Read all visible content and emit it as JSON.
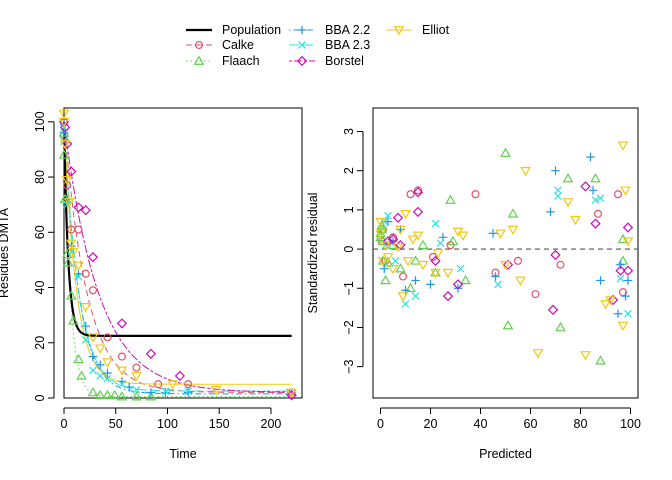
{
  "legend": {
    "entries": [
      {
        "label": "Population",
        "color": "#000000",
        "lty": "solid",
        "marker": "none"
      },
      {
        "label": "Calke",
        "color": "#DF536B",
        "lty": "dashed",
        "marker": "circle"
      },
      {
        "label": "Flaach",
        "color": "#61D04F",
        "lty": "dotted",
        "marker": "triangle"
      },
      {
        "label": "BBA 2.2",
        "color": "#2297E6",
        "lty": "dotdash",
        "marker": "plus"
      },
      {
        "label": "BBA 2.3",
        "color": "#28E2E5",
        "lty": "longdash",
        "marker": "cross"
      },
      {
        "label": "Borstel",
        "color": "#CD0BBC",
        "lty": "twodash",
        "marker": "diamond"
      },
      {
        "label": "Elliot",
        "color": "#F5C710",
        "lty": "solid",
        "marker": "triangle-down"
      }
    ]
  },
  "chart_data": [
    {
      "type": "scatter",
      "panel": "left",
      "xlabel": "Time",
      "ylabel": "Residues DMTA",
      "xlim": [
        0,
        230
      ],
      "ylim": [
        0,
        105
      ],
      "xticks": [
        0,
        50,
        100,
        150,
        200
      ],
      "yticks": [
        0,
        20,
        40,
        60,
        80,
        100
      ],
      "population_curve": {
        "color": "#000000",
        "model": "fast decline to plateau",
        "plateau": 22.5,
        "y0": 100,
        "k": 0.25
      },
      "series": [
        {
          "name": "Calke",
          "color": "#DF536B",
          "k": 0.045,
          "plateau": 2,
          "points": [
            [
              0,
              100
            ],
            [
              0,
              95
            ],
            [
              3,
              77
            ],
            [
              7,
              61
            ],
            [
              14,
              61
            ],
            [
              21,
              45
            ],
            [
              28,
              39
            ],
            [
              42,
              22
            ],
            [
              56,
              15
            ],
            [
              70,
              11
            ],
            [
              91,
              5
            ],
            [
              120,
              5
            ],
            [
              220,
              2
            ]
          ]
        },
        {
          "name": "Flaach",
          "color": "#61D04F",
          "k": 0.16,
          "plateau": 0.5,
          "points": [
            [
              0,
              96
            ],
            [
              0,
              88
            ],
            [
              1,
              72
            ],
            [
              3,
              52
            ],
            [
              4,
              49
            ],
            [
              7,
              37
            ],
            [
              9,
              28
            ],
            [
              14,
              14
            ],
            [
              17,
              8
            ],
            [
              28,
              2
            ],
            [
              35,
              1
            ],
            [
              42,
              1
            ],
            [
              49,
              1
            ],
            [
              56,
              0.5
            ],
            [
              70,
              0.5
            ],
            [
              84,
              0.5
            ]
          ]
        },
        {
          "name": "BBA 2.2",
          "color": "#2297E6",
          "k": 0.07,
          "plateau": 1.5,
          "points": [
            [
              0,
              99
            ],
            [
              0,
              96
            ],
            [
              3,
              72
            ],
            [
              7,
              55
            ],
            [
              14,
              45
            ],
            [
              21,
              26
            ],
            [
              28,
              15
            ],
            [
              35,
              12
            ],
            [
              42,
              9
            ],
            [
              56,
              6
            ],
            [
              63,
              4
            ],
            [
              84,
              2
            ],
            [
              98,
              2
            ],
            [
              120,
              2
            ],
            [
              218,
              1.5
            ]
          ]
        },
        {
          "name": "BBA 2.3",
          "color": "#28E2E5",
          "k": 0.07,
          "plateau": 2.5,
          "points": [
            [
              0,
              98
            ],
            [
              0,
              93
            ],
            [
              3,
              70
            ],
            [
              7,
              53
            ],
            [
              14,
              44
            ],
            [
              21,
              21
            ],
            [
              28,
              10
            ],
            [
              35,
              8
            ],
            [
              42,
              7
            ],
            [
              56,
              5
            ],
            [
              70,
              3
            ],
            [
              98,
              2.5
            ],
            [
              120,
              2.5
            ],
            [
              218,
              2
            ]
          ]
        },
        {
          "name": "Borstel",
          "color": "#CD0BBC",
          "k": 0.03,
          "plateau": 2,
          "points": [
            [
              0,
              100
            ],
            [
              1,
              98
            ],
            [
              3,
              92
            ],
            [
              7,
              82
            ],
            [
              14,
              69
            ],
            [
              21,
              68
            ],
            [
              28,
              51
            ],
            [
              56,
              27
            ],
            [
              84,
              16
            ],
            [
              112,
              8
            ],
            [
              220,
              1
            ]
          ]
        },
        {
          "name": "Elliot",
          "color": "#F5C710",
          "k": 0.085,
          "plateau": 5,
          "points": [
            [
              0,
              103
            ],
            [
              0,
              100
            ],
            [
              1,
              92
            ],
            [
              3,
              79
            ],
            [
              5,
              71
            ],
            [
              7,
              56
            ],
            [
              9,
              53
            ],
            [
              14,
              48
            ],
            [
              21,
              33
            ],
            [
              28,
              22
            ],
            [
              35,
              18
            ],
            [
              42,
              13
            ],
            [
              56,
              10
            ],
            [
              70,
              8
            ],
            [
              105,
              5
            ],
            [
              147,
              3
            ],
            [
              220,
              2
            ]
          ]
        }
      ]
    },
    {
      "type": "scatter",
      "panel": "right",
      "xlabel": "Predicted",
      "ylabel": "Standardized residual",
      "xlim": [
        -3,
        103
      ],
      "ylim": [
        -3.8,
        3.6
      ],
      "xticks": [
        0,
        20,
        40,
        60,
        80,
        100
      ],
      "yticks": [
        -3,
        -2,
        -1,
        0,
        1,
        2,
        3
      ],
      "hline": 0,
      "series": [
        {
          "name": "Calke",
          "color": "#DF536B",
          "points": [
            [
              0.5,
              0.2
            ],
            [
              1,
              0.5
            ],
            [
              2,
              -0.3
            ],
            [
              5,
              0.3
            ],
            [
              9,
              -0.7
            ],
            [
              12,
              1.4
            ],
            [
              15,
              1.5
            ],
            [
              21,
              -0.2
            ],
            [
              28,
              0.1
            ],
            [
              38,
              1.4
            ],
            [
              46,
              -0.6
            ],
            [
              55,
              -0.3
            ],
            [
              62,
              -1.15
            ],
            [
              72,
              -0.4
            ],
            [
              87,
              0.9
            ],
            [
              95,
              1.4
            ],
            [
              97,
              -1.1
            ]
          ]
        },
        {
          "name": "Flaach",
          "color": "#61D04F",
          "points": [
            [
              0,
              0.3
            ],
            [
              0,
              0.4
            ],
            [
              0.5,
              0.5
            ],
            [
              0.5,
              0.6
            ],
            [
              1,
              0.2
            ],
            [
              1,
              -0.3
            ],
            [
              2,
              -0.8
            ],
            [
              3,
              -0.35
            ],
            [
              5,
              0.1
            ],
            [
              8,
              -0.5
            ],
            [
              12,
              -1
            ],
            [
              14,
              -0.3
            ],
            [
              17,
              0.1
            ],
            [
              22,
              -0.6
            ],
            [
              28,
              1.25
            ],
            [
              29,
              0.2
            ],
            [
              34,
              -0.8
            ],
            [
              50,
              2.45
            ],
            [
              51,
              -1.95
            ],
            [
              53,
              0.9
            ],
            [
              72,
              -2
            ],
            [
              75,
              1.8
            ],
            [
              86,
              1.8
            ],
            [
              88,
              -2.85
            ],
            [
              97,
              -0.3
            ],
            [
              97,
              0.25
            ]
          ]
        },
        {
          "name": "BBA 2.2",
          "color": "#2297E6",
          "points": [
            [
              1.5,
              -0.5
            ],
            [
              3,
              0.7
            ],
            [
              5,
              0.2
            ],
            [
              8,
              0.5
            ],
            [
              10,
              -1.05
            ],
            [
              14,
              -0.8
            ],
            [
              20,
              -0.9
            ],
            [
              25,
              0.3
            ],
            [
              31,
              -1
            ],
            [
              45,
              0.4
            ],
            [
              46,
              -0.7
            ],
            [
              68,
              0.95
            ],
            [
              70,
              2
            ],
            [
              84,
              2.35
            ],
            [
              85,
              1.5
            ],
            [
              88,
              -0.8
            ],
            [
              96,
              -0.4
            ],
            [
              98,
              -1.2
            ],
            [
              99,
              -0.8
            ],
            [
              95,
              -1.65
            ]
          ]
        },
        {
          "name": "BBA 2.3",
          "color": "#28E2E5",
          "points": [
            [
              1.5,
              0.7
            ],
            [
              2,
              0.1
            ],
            [
              3,
              0.85
            ],
            [
              6,
              -0.3
            ],
            [
              10,
              -1.4
            ],
            [
              14,
              -1.2
            ],
            [
              22,
              0.65
            ],
            [
              24,
              0.15
            ],
            [
              32,
              -0.5
            ],
            [
              47,
              -0.9
            ],
            [
              71,
              1.5
            ],
            [
              71,
              1.35
            ],
            [
              86,
              1.25
            ],
            [
              88,
              1.3
            ],
            [
              96,
              -0.75
            ],
            [
              99,
              -1.65
            ]
          ]
        },
        {
          "name": "Borstel",
          "color": "#CD0BBC",
          "points": [
            [
              3,
              0.2
            ],
            [
              5,
              0.25
            ],
            [
              7,
              0.8
            ],
            [
              8,
              0.1
            ],
            [
              15,
              1.45
            ],
            [
              15,
              0.95
            ],
            [
              22,
              -0.3
            ],
            [
              27,
              -1.2
            ],
            [
              31,
              -0.9
            ],
            [
              51,
              -0.4
            ],
            [
              69,
              -1.55
            ],
            [
              70,
              -0.15
            ],
            [
              82,
              1.6
            ],
            [
              86,
              0.65
            ],
            [
              93,
              -1.3
            ],
            [
              96,
              -0.55
            ],
            [
              99,
              0.55
            ],
            [
              99,
              -0.55
            ]
          ]
        },
        {
          "name": "Elliot",
          "color": "#F5C710",
          "points": [
            [
              0,
              0.7
            ],
            [
              0,
              0.4
            ],
            [
              1,
              -0.3
            ],
            [
              2,
              0.1
            ],
            [
              3,
              -0.2
            ],
            [
              5,
              -0.5
            ],
            [
              7,
              0.05
            ],
            [
              8,
              0.5
            ],
            [
              9,
              -1.2
            ],
            [
              10,
              0.9
            ],
            [
              11,
              -0.3
            ],
            [
              13,
              0.25
            ],
            [
              15,
              0.35
            ],
            [
              17,
              -0.4
            ],
            [
              22,
              -0.6
            ],
            [
              23,
              -0.1
            ],
            [
              27,
              -0.6
            ],
            [
              31,
              0.45
            ],
            [
              33,
              0.35
            ],
            [
              48,
              0.4
            ],
            [
              50,
              -0.4
            ],
            [
              53,
              0.5
            ],
            [
              56,
              -0.8
            ],
            [
              58,
              2
            ],
            [
              63,
              -2.65
            ],
            [
              75,
              1.2
            ],
            [
              78,
              0.75
            ],
            [
              82,
              -2.7
            ],
            [
              90,
              -1.4
            ],
            [
              92,
              -1.3
            ],
            [
              97,
              2.65
            ],
            [
              98,
              1.5
            ],
            [
              99,
              0.2
            ],
            [
              97,
              -1.95
            ]
          ]
        }
      ]
    }
  ]
}
